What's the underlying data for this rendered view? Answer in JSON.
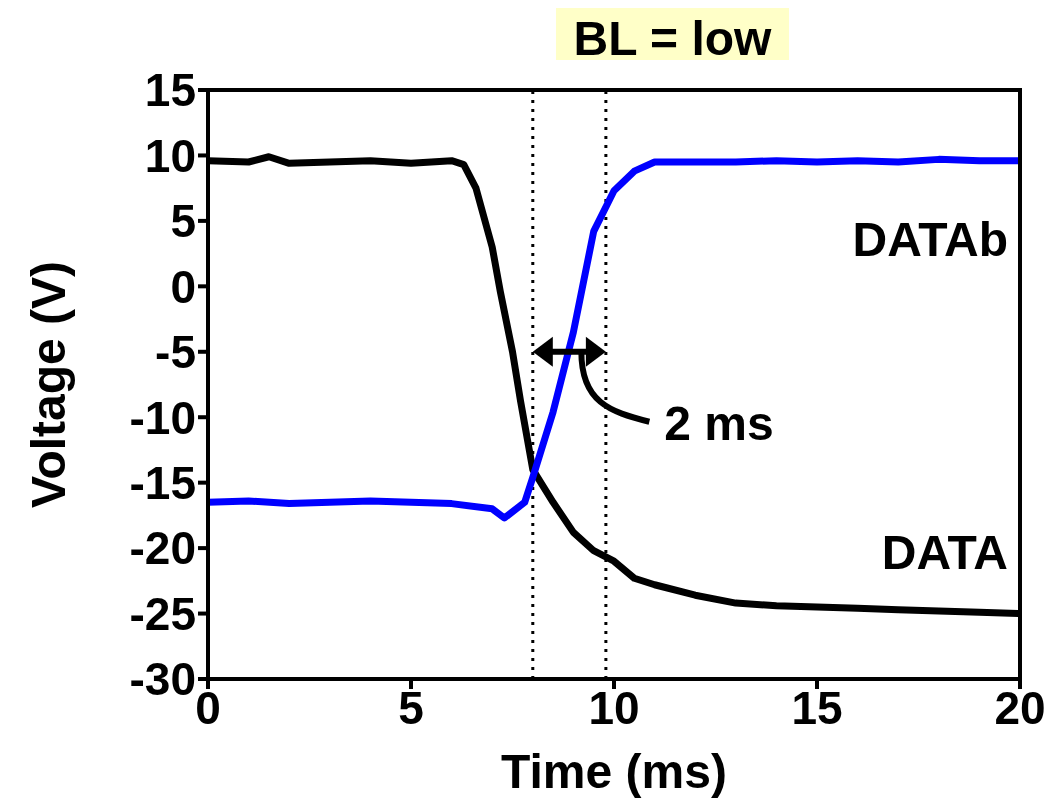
{
  "chart_data": {
    "type": "line",
    "title": "BL = low",
    "xlabel": "Time (ms)",
    "ylabel": "Voltage (V)",
    "xlim": [
      0,
      20
    ],
    "xticks": [
      0,
      5,
      10,
      15,
      20
    ],
    "ylim": [
      -30,
      15
    ],
    "yticks": [
      -30,
      -25,
      -20,
      -15,
      -10,
      -5,
      0,
      5,
      10,
      15
    ],
    "grid": false,
    "legend": false,
    "marker": "none",
    "line_style": "solid",
    "series": [
      {
        "name": "DATA",
        "color": "#000000",
        "x": [
          0,
          1,
          1.5,
          2,
          3,
          4,
          5,
          6,
          6.3,
          6.6,
          7,
          7.2,
          7.5,
          7.7,
          8,
          8.5,
          9,
          9.5,
          10,
          10.5,
          11,
          12,
          13,
          14,
          15,
          16,
          17,
          18,
          19,
          20
        ],
        "values": [
          9.6,
          9.5,
          9.9,
          9.4,
          9.5,
          9.6,
          9.4,
          9.6,
          9.3,
          7.5,
          3,
          -0.4,
          -5,
          -8.8,
          -14,
          -16.5,
          -18.8,
          -20.2,
          -21,
          -22.3,
          -22.8,
          -23.6,
          -24.2,
          -24.4,
          -24.5,
          -24.6,
          -24.7,
          -24.8,
          -24.9,
          -25
        ]
      },
      {
        "name": "DATAb",
        "color": "#0000ff",
        "x": [
          0,
          1,
          2,
          3,
          4,
          5,
          6,
          7,
          7.3,
          7.8,
          8,
          8.5,
          9,
          9.5,
          10,
          10.5,
          11,
          12,
          13,
          14,
          15,
          16,
          17,
          18,
          19,
          20
        ],
        "values": [
          -16.5,
          -16.4,
          -16.6,
          -16.5,
          -16.4,
          -16.5,
          -16.6,
          -17,
          -17.7,
          -16.5,
          -14.6,
          -9.6,
          -3.5,
          4.2,
          7.3,
          8.8,
          9.5,
          9.5,
          9.5,
          9.6,
          9.5,
          9.6,
          9.5,
          9.7,
          9.6,
          9.6
        ]
      }
    ],
    "ref_lines": [
      {
        "axis": "x",
        "value": 8,
        "color": "#000000",
        "line_style": "dotted"
      },
      {
        "axis": "x",
        "value": 9.8,
        "color": "#000000",
        "line_style": "dotted"
      }
    ],
    "annotations": [
      {
        "text": "2 ms",
        "x": 8.9,
        "y": -5
      }
    ]
  }
}
